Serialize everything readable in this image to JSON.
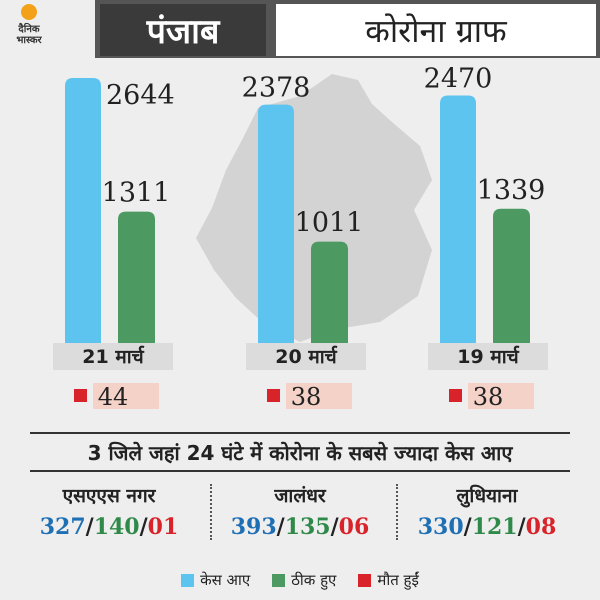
{
  "header": {
    "title": "पंजाब",
    "subtitle": "कोरोना ग्राफ",
    "logo_text": [
      "दैनिक",
      "भास्कर"
    ]
  },
  "colors": {
    "cases": "#5cc4ee",
    "recovered": "#4c9a62",
    "deaths": "#d9232a",
    "date_box": "#dcdcdc",
    "death_box": "#f4d2c8"
  },
  "chart_data": {
    "type": "bar",
    "categories": [
      "21 मार्च",
      "20 मार्च",
      "19 मार्च"
    ],
    "series": [
      {
        "name": "केस आए",
        "values": [
          2644,
          2378,
          2470
        ]
      },
      {
        "name": "ठीक हुए",
        "values": [
          1311,
          1011,
          1339
        ]
      },
      {
        "name": "मौत हुईं",
        "values": [
          44,
          38,
          38
        ]
      }
    ],
    "value_labels": {
      "cases": [
        "2644",
        "2378",
        "2470"
      ],
      "recovered": [
        "1311",
        "1011",
        "1339"
      ],
      "deaths": [
        "44",
        "38",
        "38"
      ]
    },
    "ylim": [
      0,
      2644
    ],
    "legend": "bottom",
    "grid": false
  },
  "districts_title": "3 जिले जहां 24 घंटे में कोरोना के सबसे ज्यादा केस आए",
  "districts": [
    {
      "name": "एसएएस नगर",
      "cases": "327",
      "recovered": "140",
      "deaths": "01"
    },
    {
      "name": "जालंधर",
      "cases": "393",
      "recovered": "135",
      "deaths": "06"
    },
    {
      "name": "लुधियाना",
      "cases": "330",
      "recovered": "121",
      "deaths": "08"
    }
  ],
  "legend": [
    "केस आए",
    "ठीक हुए",
    "मौत हुईं"
  ]
}
